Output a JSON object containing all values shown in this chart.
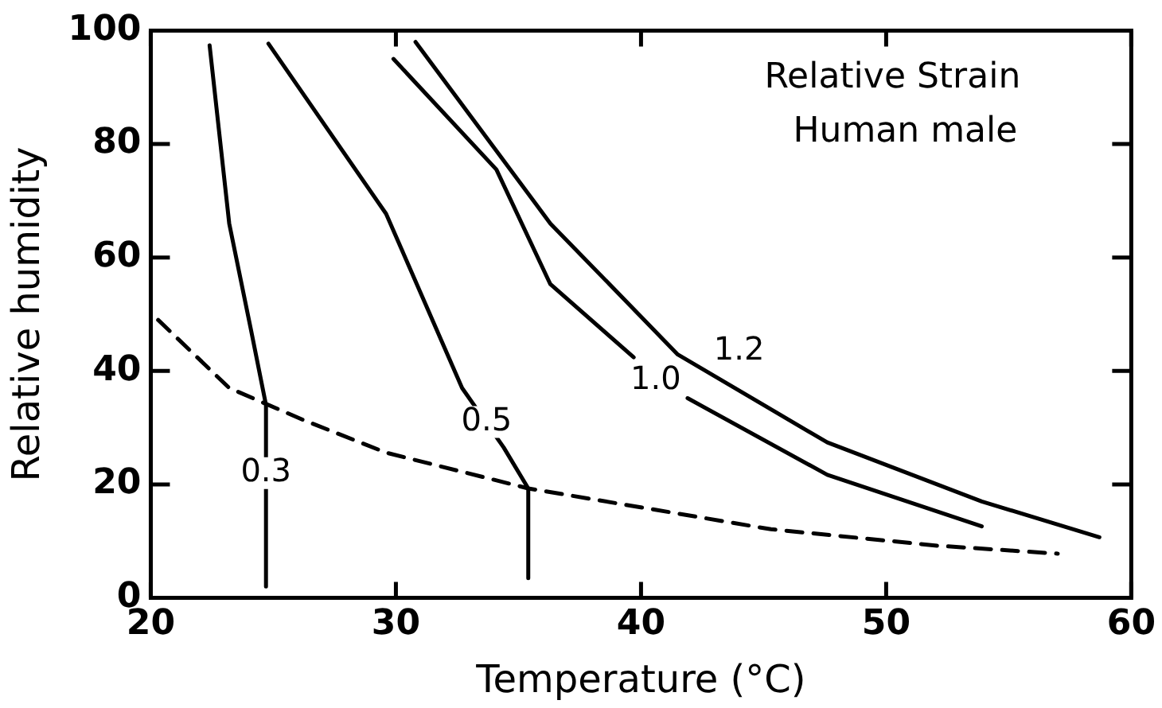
{
  "chart_data": {
    "type": "line",
    "xlabel": "Temperature (°C)",
    "ylabel": "Relative humidity",
    "annotations": [
      "Relative Strain",
      "Human male",
      {
        "text": "0.3",
        "x": 24.7,
        "y": 22
      },
      {
        "text": "0.5",
        "x": 33.7,
        "y": 31
      },
      {
        "text": "1.0",
        "x": 40.6,
        "y": 38.3
      },
      {
        "text": "1.2",
        "x": 44,
        "y": 43.5
      }
    ],
    "series": [
      {
        "color": "#000000",
        "x": [
          22.4,
          23.2,
          24.1,
          24.7,
          24.7
        ],
        "values": [
          97.4,
          66,
          47,
          34,
          2
        ]
      },
      {
        "color": "#000000",
        "x": [
          24.8,
          29.6,
          32.7,
          34.4,
          35.4,
          35.4
        ],
        "values": [
          97.7,
          67.7,
          37,
          26.5,
          19.3,
          3.5
        ]
      },
      {
        "color": "#000000",
        "x": [
          29.9,
          34.1,
          36.3,
          39.7,
          40.8,
          41.9,
          47.6,
          53.9
        ],
        "values": [
          95,
          75.5,
          55.3,
          42.4,
          null,
          35.2,
          21.7,
          12.6
        ]
      },
      {
        "color": "#000000",
        "x": [
          30.8,
          36.3,
          41.5,
          47.6,
          53.9,
          58.7
        ],
        "values": [
          98,
          66,
          42.9,
          27.4,
          17,
          10.7
        ]
      },
      {
        "color": "#000000",
        "line_style": "dashed",
        "x": [
          20.3,
          23.2,
          26.2,
          29.6,
          35.4,
          45.3,
          52.1,
          57
        ],
        "values": [
          49,
          37,
          31.4,
          25.6,
          19.3,
          12.1,
          9.2,
          7.8
        ]
      }
    ],
    "xlim": [
      20,
      60
    ],
    "xticks": [
      20,
      30,
      40,
      50,
      60
    ],
    "ylim": [
      0,
      100
    ],
    "yticks": [
      0,
      20,
      40,
      60,
      80,
      100
    ],
    "grid": false,
    "legend": false,
    "marker": "none"
  }
}
